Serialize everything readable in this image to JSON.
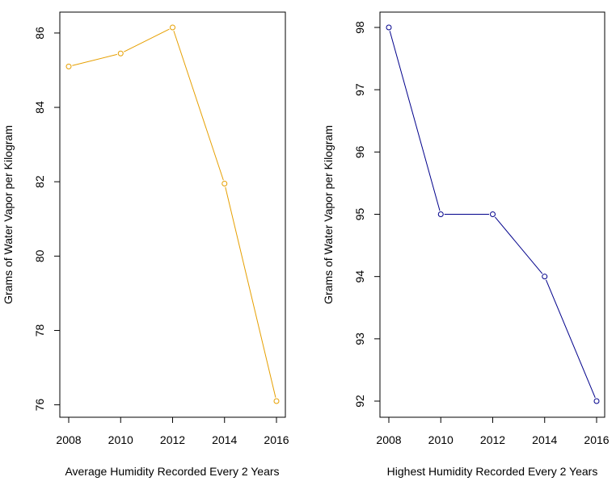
{
  "chart_data": [
    {
      "type": "line",
      "xlabel": "Average Humidity Recorded Every 2 Years",
      "ylabel": "Grams of Water Vapor per Kilogram",
      "x": [
        2008,
        2010,
        2012,
        2014,
        2016
      ],
      "values": [
        85.1,
        85.45,
        86.15,
        81.95,
        76.1
      ],
      "xticks": [
        "2008",
        "2010",
        "2012",
        "2014",
        "2016"
      ],
      "yticks": [
        76,
        78,
        80,
        82,
        84,
        86
      ],
      "xlim": [
        2008,
        2016
      ],
      "ylim": [
        76.1,
        86.15
      ],
      "color": "#E69F00",
      "marker": "open-circle",
      "grid": false
    },
    {
      "type": "line",
      "xlabel": "Highest Humidity Recorded Every 2 Years",
      "ylabel": "Grams of Water Vapor per Kilogram",
      "x": [
        2008,
        2010,
        2012,
        2014,
        2016
      ],
      "values": [
        98,
        95,
        95,
        94,
        92
      ],
      "xticks": [
        "2008",
        "2010",
        "2012",
        "2014",
        "2016"
      ],
      "yticks": [
        92,
        93,
        94,
        95,
        96,
        97,
        98
      ],
      "xlim": [
        2008,
        2016
      ],
      "ylim": [
        92,
        98
      ],
      "color": "#00008B",
      "marker": "open-circle",
      "grid": false
    }
  ]
}
